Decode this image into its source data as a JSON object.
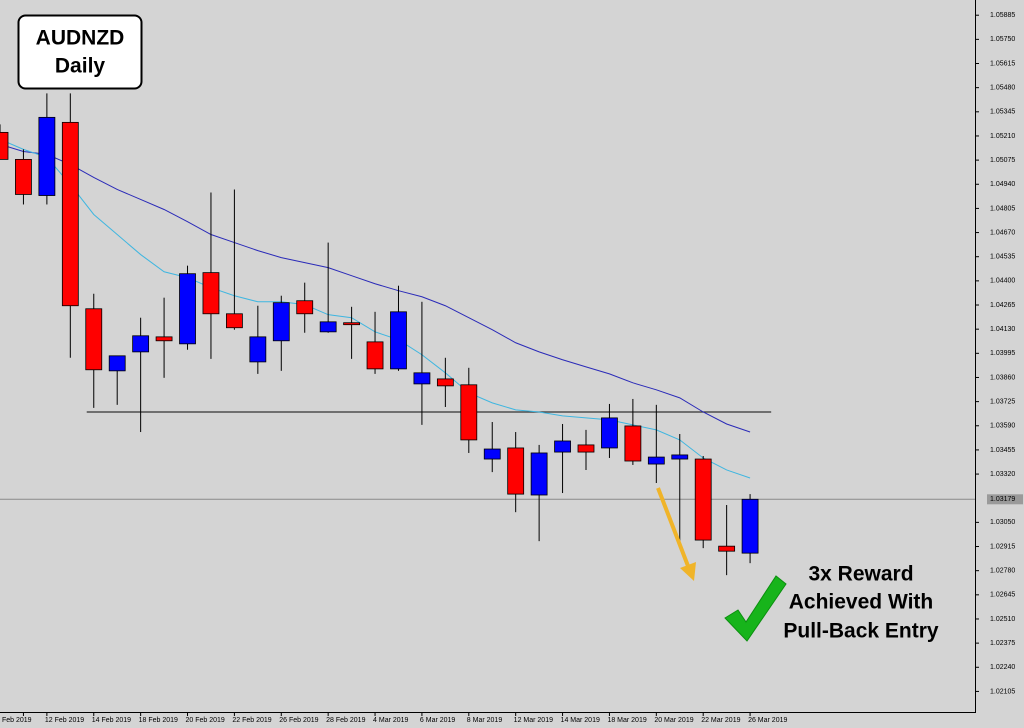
{
  "chart_data": {
    "type": "candlestick",
    "title": "AUDNZD",
    "subtitle": "Daily",
    "annotation": [
      "3x Reward",
      "Achieved With",
      "Pull-Back Entry"
    ],
    "categories": [
      null,
      "Feb 2019",
      "12 Feb 2019",
      null,
      "14 Feb 2019",
      null,
      "18 Feb 2019",
      null,
      "20 Feb 2019",
      null,
      "22 Feb 2019",
      null,
      "26 Feb 2019",
      null,
      "28 Feb 2019",
      null,
      "4 Mar 2019",
      null,
      "6 Mar 2019",
      null,
      "8 Mar 2019",
      null,
      "12 Mar 2019",
      null,
      "14 Mar 2019",
      null,
      "18 Mar 2019",
      null,
      "20 Mar 2019",
      null,
      "22 Mar 2019",
      null,
      "26 Mar 2019"
    ],
    "open": [
      1.0523,
      1.05079,
      1.04877,
      1.05286,
      1.04244,
      1.03897,
      1.04003,
      1.04087,
      1.04048,
      1.04446,
      1.04216,
      1.03947,
      1.04065,
      1.04289,
      1.04115,
      1.04166,
      1.04059,
      1.03908,
      1.03824,
      1.03852,
      1.03819,
      1.03404,
      1.03466,
      1.03203,
      1.03443,
      1.03483,
      1.03466,
      1.03589,
      1.03376,
      1.03404,
      1.03404,
      1.02917,
      1.02878
    ],
    "high": [
      1.05275,
      1.05135,
      1.05448,
      1.05448,
      1.04328,
      1.03981,
      1.04194,
      1.04306,
      1.04485,
      1.04894,
      1.04911,
      1.04261,
      1.04317,
      1.0439,
      1.04614,
      1.04255,
      1.04227,
      1.04373,
      1.04283,
      1.0397,
      1.03914,
      1.03611,
      1.03555,
      1.03483,
      1.036,
      1.03567,
      1.03712,
      1.0374,
      1.03707,
      1.03544,
      1.03421,
      1.03147,
      1.03208
    ],
    "low": [
      1.05079,
      1.04827,
      1.04827,
      1.0397,
      1.0369,
      1.03707,
      1.03555,
      1.03858,
      1.04015,
      1.03964,
      1.04127,
      1.0388,
      1.03897,
      1.0411,
      1.0411,
      1.03964,
      1.0388,
      1.03897,
      1.03595,
      1.03695,
      1.03438,
      1.03331,
      1.03107,
      1.02945,
      1.03214,
      1.03343,
      1.0341,
      1.03371,
      1.0327,
      1.02911,
      1.02906,
      1.02755,
      1.02822
    ],
    "close": [
      1.05079,
      1.04883,
      1.05314,
      1.04261,
      1.03903,
      1.03981,
      1.04093,
      1.04065,
      1.0444,
      1.04216,
      1.04138,
      1.04087,
      1.04278,
      1.04216,
      1.04171,
      1.04155,
      1.03908,
      1.04227,
      1.03886,
      1.03813,
      1.03511,
      1.0346,
      1.03208,
      1.03438,
      1.03505,
      1.03443,
      1.03634,
      1.03393,
      1.03415,
      1.03427,
      1.02951,
      1.02889,
      1.03179
    ],
    "up_color": "#0000ff",
    "down_color": "#ff0000",
    "lines": [
      {
        "color": "#2a2ab8",
        "values": [
          1.05163,
          1.05123,
          1.05107,
          1.05051,
          1.04978,
          1.04911,
          1.04855,
          1.04799,
          1.04731,
          1.04659,
          1.04614,
          1.04569,
          1.0453,
          1.04502,
          1.04474,
          1.04429,
          1.04384,
          1.04345,
          1.04311,
          1.04261,
          1.04194,
          1.04127,
          1.04054,
          1.04003,
          1.03959,
          1.03919,
          1.0388,
          1.0383,
          1.03791,
          1.03746,
          1.03667,
          1.036,
          1.03555
        ]
      },
      {
        "color": "#3fb6e0",
        "values": [
          1.05191,
          1.05135,
          1.0509,
          1.04939,
          1.04771,
          1.04659,
          1.04547,
          1.04451,
          1.04418,
          1.04362,
          1.04317,
          1.04283,
          1.04283,
          1.04267,
          1.04211,
          1.04194,
          1.04115,
          1.04071,
          1.03987,
          1.03886,
          1.03774,
          1.03718,
          1.03679,
          1.03667,
          1.03645,
          1.03634,
          1.03623,
          1.03595,
          1.03567,
          1.03511,
          1.0341,
          1.03343,
          1.03298
        ]
      }
    ],
    "support_level": 1.03667,
    "last_price": 1.03179,
    "ylim": [
      1.0199,
      1.0597
    ],
    "yticks": [
      1.05885,
      {
        "value": 1.0575,
        "label": "1.05750"
      },
      1.05615,
      {
        "value": 1.0548,
        "label": "1.05480"
      },
      1.05345,
      {
        "value": 1.0521,
        "label": "1.05210"
      },
      1.05075,
      {
        "value": 1.0494,
        "label": "1.04940"
      },
      1.04805,
      {
        "value": 1.0467,
        "label": "1.04670"
      },
      1.04535,
      {
        "value": 1.044,
        "label": "1.04400"
      },
      1.04265,
      {
        "value": 1.0413,
        "label": "1.04130"
      },
      1.03995,
      {
        "value": 1.0386,
        "label": "1.03860"
      },
      1.03725,
      {
        "value": 1.0359,
        "label": "1.03590"
      },
      1.03455,
      {
        "value": 1.0332,
        "label": "1.03320"
      },
      {
        "value": 1.0305,
        "label": "1.03050"
      },
      1.02915,
      {
        "value": 1.0278,
        "label": "1.02780"
      },
      1.02645,
      {
        "value": 1.0251,
        "label": "1.02510"
      },
      1.02375,
      {
        "value": 1.0224,
        "label": "1.02240"
      },
      1.02105
    ]
  }
}
